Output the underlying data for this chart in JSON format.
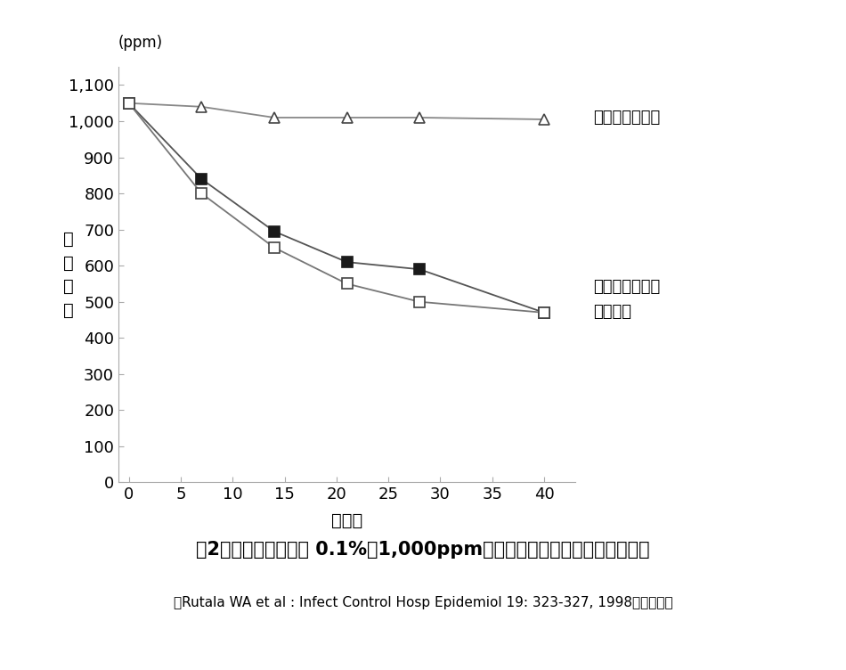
{
  "title": "図2．各種容器中での 0.1%（1,000ppm）次亜塩素酸ナトリウムの安定性",
  "subtitle": "〔Rutala WA et al : Infect Control Hosp Epidemiol 19: 323-327, 1998より引用〕",
  "ylabel_chars": [
    "有",
    "効",
    "塩",
    "素"
  ],
  "ylabel_top": "(ppm)",
  "xlabel": "日　数",
  "series": [
    {
      "label": "褐色の気密容器",
      "x": [
        0,
        7,
        14,
        21,
        28,
        40
      ],
      "y": [
        1050,
        1040,
        1010,
        1010,
        1010,
        1005
      ],
      "marker": "^",
      "marker_facecolor": "white",
      "marker_edgecolor": "#444444",
      "linecolor": "#888888",
      "linewidth": 1.3,
      "markersize": 9
    },
    {
      "label": "透明の気密容器",
      "x": [
        0,
        7,
        14,
        21,
        28,
        40
      ],
      "y": [
        1050,
        840,
        695,
        610,
        590,
        470
      ],
      "marker": "s",
      "marker_facecolor": "#1a1a1a",
      "marker_edgecolor": "#1a1a1a",
      "linecolor": "#555555",
      "linewidth": 1.3,
      "markersize": 9
    },
    {
      "label": "開放容器",
      "x": [
        0,
        7,
        14,
        21,
        28,
        40
      ],
      "y": [
        1050,
        800,
        650,
        550,
        500,
        470
      ],
      "marker": "s",
      "marker_facecolor": "white",
      "marker_edgecolor": "#444444",
      "linecolor": "#777777",
      "linewidth": 1.3,
      "markersize": 9
    }
  ],
  "xlim": [
    -1,
    43
  ],
  "ylim": [
    0,
    1150
  ],
  "xticks": [
    0,
    5,
    10,
    15,
    20,
    25,
    30,
    35,
    40
  ],
  "yticks": [
    0,
    100,
    200,
    300,
    400,
    500,
    600,
    700,
    800,
    900,
    1000,
    1100
  ],
  "ytick_labels": [
    "0",
    "100",
    "200",
    "300",
    "400",
    "500",
    "600",
    "700",
    "800",
    "900",
    "1,000",
    "1,100"
  ],
  "background_color": "#ffffff",
  "spine_color": "#aaaaaa"
}
